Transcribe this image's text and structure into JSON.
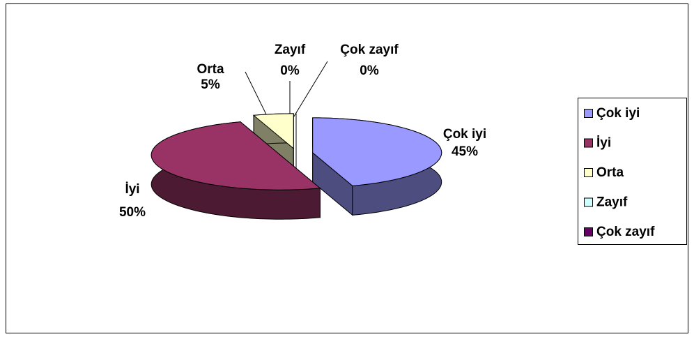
{
  "chart_data": {
    "type": "pie",
    "categories": [
      "Çok iyi",
      "İyi",
      "Orta",
      "Zayıf",
      "Çok zayıf"
    ],
    "values": [
      45,
      50,
      5,
      0,
      0
    ],
    "value_labels": [
      "45%",
      "50%",
      "5%",
      "0%",
      "0%"
    ],
    "colors": [
      "#9999ff",
      "#993366",
      "#ffffcc",
      "#ccffff",
      "#660066"
    ],
    "legend": "right"
  }
}
